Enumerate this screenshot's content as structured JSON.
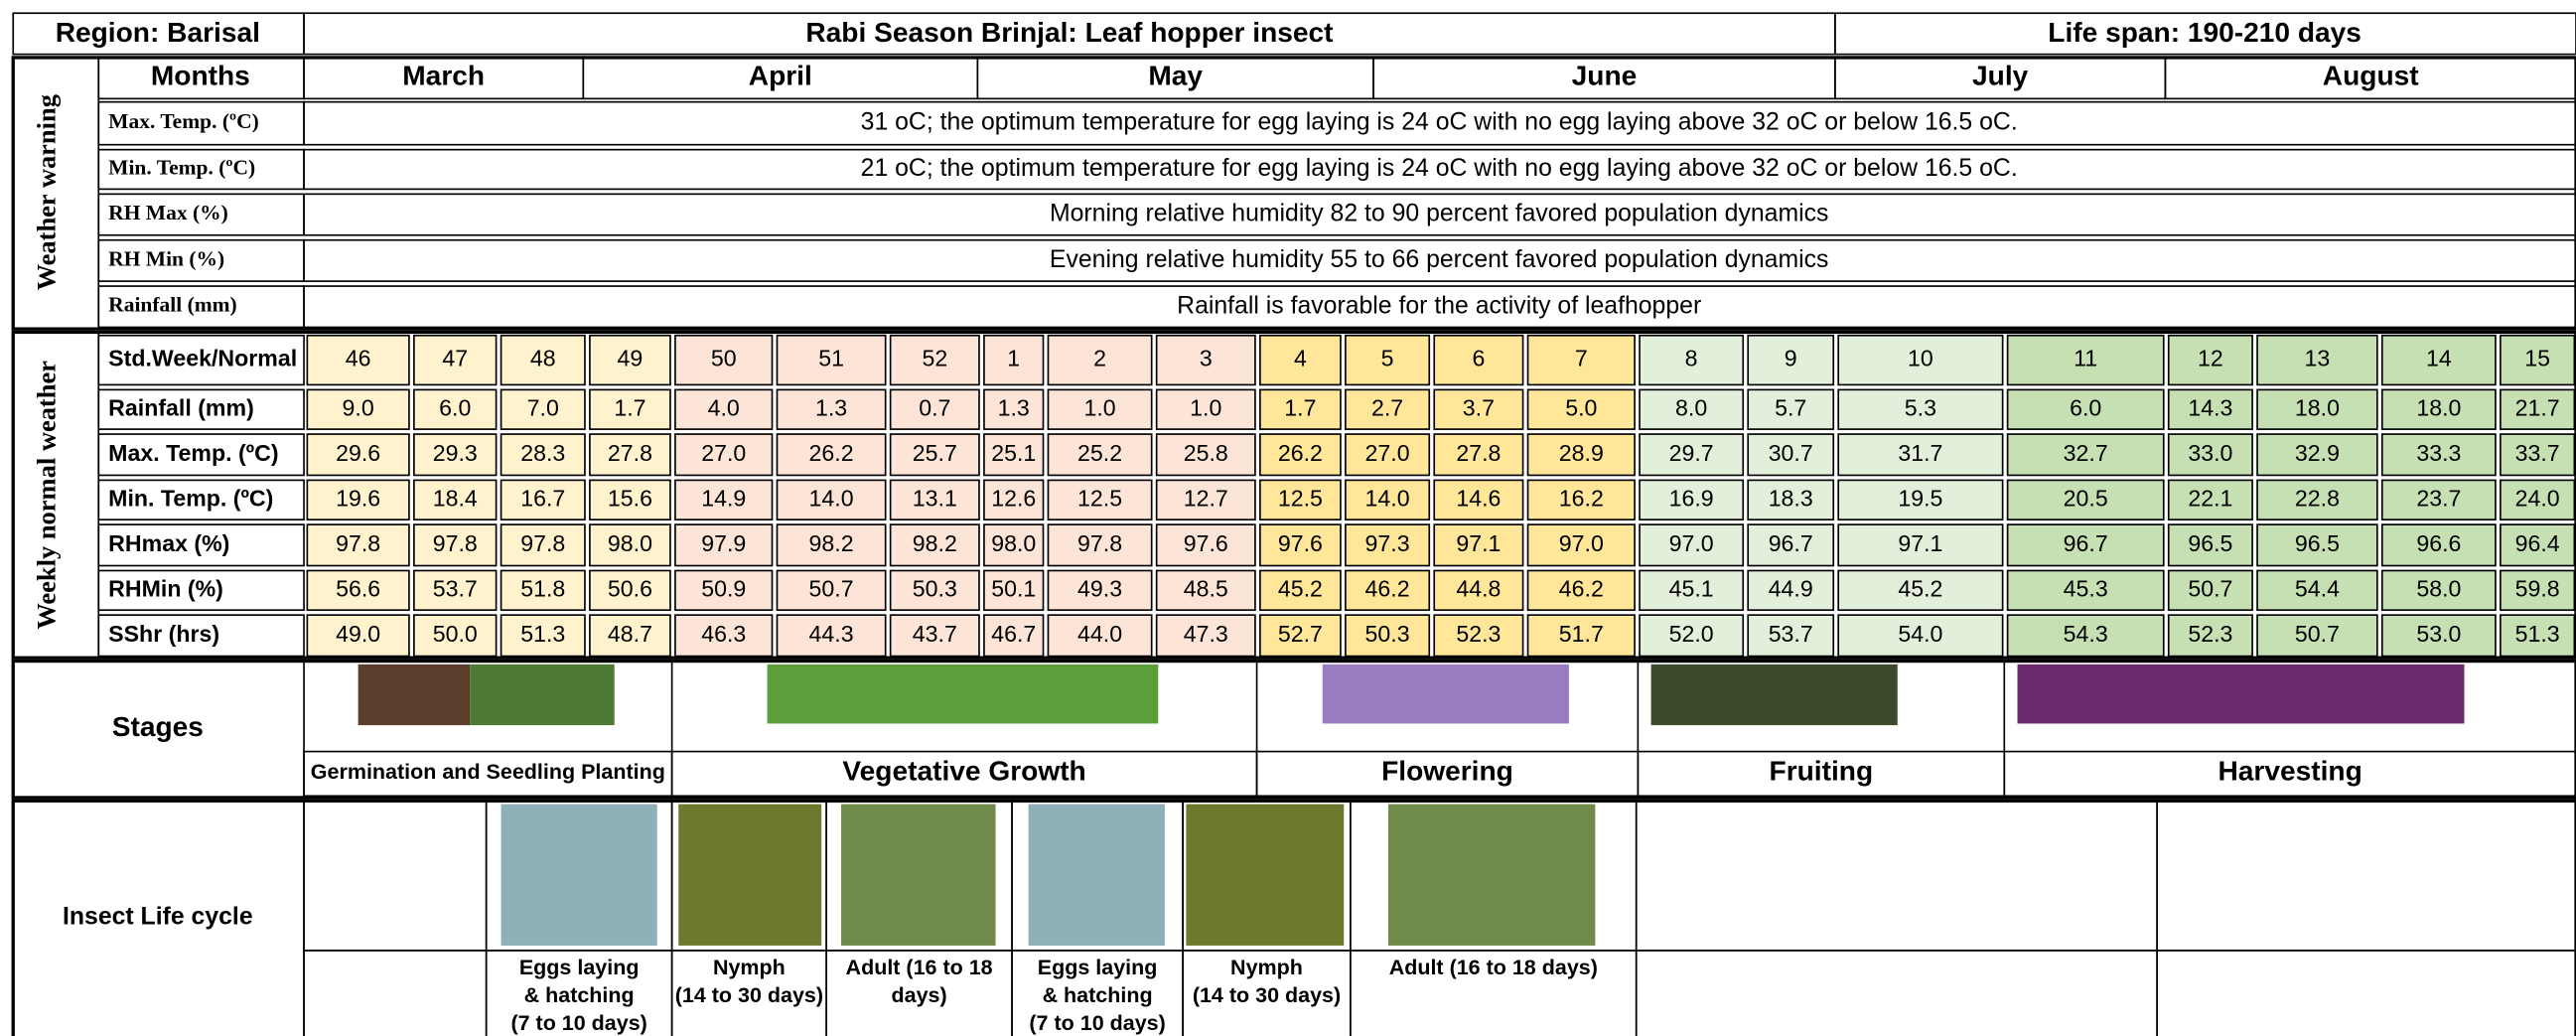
{
  "header": {
    "region": "Region: Barisal",
    "title": "Rabi Season Brinjal: Leaf hopper insect",
    "life_span": "Life span: 190-210 days"
  },
  "weather_warning": {
    "label": "Weather warning",
    "months_label": "Months",
    "months": [
      "March",
      "April",
      "May",
      "June",
      "July",
      "August"
    ],
    "rows": [
      {
        "label": "Max. Temp. (ºC)",
        "text": "31 oC; the optimum temperature for egg laying is 24 oC with no egg laying above 32 oC or below 16.5 oC."
      },
      {
        "label": "Min. Temp. (ºC)",
        "text": "21 oC; the optimum temperature for egg laying is 24 oC with no egg laying above 32 oC or below 16.5 oC."
      },
      {
        "label": "RH Max (%)",
        "text": "Morning relative humidity 82 to 90 percent favored population dynamics"
      },
      {
        "label": "RH Min (%)",
        "text": "Evening relative humidity 55 to 66 percent favored population dynamics"
      },
      {
        "label": "Rainfall (mm)",
        "text": "Rainfall is favorable for the activity of leafhopper"
      }
    ]
  },
  "weekly_normal": {
    "label": "Weekly normal weather",
    "column_colors": [
      "#fff2cc",
      "#fff2cc",
      "#fff2cc",
      "#fff2cc",
      "#fce4d6",
      "#fce4d6",
      "#fce4d6",
      "#fce4d6",
      "#fce4d6",
      "#fce4d6",
      "#ffe699",
      "#ffe699",
      "#ffe699",
      "#ffe699",
      "#e2efda",
      "#e2efda",
      "#e2efda",
      "#c6e0b4",
      "#c6e0b4",
      "#c6e0b4",
      "#c6e0b4",
      "#c6e0b4"
    ],
    "rows": [
      {
        "label": "Std.Week/Normal",
        "values": [
          "46",
          "47",
          "48",
          "49",
          "50",
          "51",
          "52",
          "1",
          "2",
          "3",
          "4",
          "5",
          "6",
          "7",
          "8",
          "9",
          "10",
          "11",
          "12",
          "13",
          "14",
          "15"
        ]
      },
      {
        "label": "Rainfall (mm)",
        "values": [
          "9.0",
          "6.0",
          "7.0",
          "1.7",
          "4.0",
          "1.3",
          "0.7",
          "1.3",
          "1.0",
          "1.0",
          "1.7",
          "2.7",
          "3.7",
          "5.0",
          "8.0",
          "5.7",
          "5.3",
          "6.0",
          "14.3",
          "18.0",
          "18.0",
          "21.7"
        ]
      },
      {
        "label": "Max. Temp. (ºC)",
        "values": [
          "29.6",
          "29.3",
          "28.3",
          "27.8",
          "27.0",
          "26.2",
          "25.7",
          "25.1",
          "25.2",
          "25.8",
          "26.2",
          "27.0",
          "27.8",
          "28.9",
          "29.7",
          "30.7",
          "31.7",
          "32.7",
          "33.0",
          "32.9",
          "33.3",
          "33.7"
        ]
      },
      {
        "label": "Min. Temp. (ºC)",
        "values": [
          "19.6",
          "18.4",
          "16.7",
          "15.6",
          "14.9",
          "14.0",
          "13.1",
          "12.6",
          "12.5",
          "12.7",
          "12.5",
          "14.0",
          "14.6",
          "16.2",
          "16.9",
          "18.3",
          "19.5",
          "20.5",
          "22.1",
          "22.8",
          "23.7",
          "24.0"
        ]
      },
      {
        "label": "RHmax (%)",
        "values": [
          "97.8",
          "97.8",
          "97.8",
          "98.0",
          "97.9",
          "98.2",
          "98.2",
          "98.0",
          "97.8",
          "97.6",
          "97.6",
          "97.3",
          "97.1",
          "97.0",
          "97.0",
          "96.7",
          "97.1",
          "96.7",
          "96.5",
          "96.5",
          "96.6",
          "96.4"
        ]
      },
      {
        "label": "RHMin (%)",
        "values": [
          "56.6",
          "53.7",
          "51.8",
          "50.6",
          "50.9",
          "50.7",
          "50.3",
          "50.1",
          "49.3",
          "48.5",
          "45.2",
          "46.2",
          "44.8",
          "46.2",
          "45.1",
          "44.9",
          "45.2",
          "45.3",
          "50.7",
          "54.4",
          "58.0",
          "59.8"
        ]
      },
      {
        "label": "SShr (hrs)",
        "values": [
          "49.0",
          "50.0",
          "51.3",
          "48.7",
          "46.3",
          "44.3",
          "43.7",
          "46.7",
          "44.0",
          "47.3",
          "52.7",
          "50.3",
          "52.3",
          "51.7",
          "52.0",
          "53.7",
          "54.0",
          "54.3",
          "52.3",
          "50.7",
          "53.0",
          "51.3"
        ]
      }
    ]
  },
  "stages": {
    "label": "Stages",
    "items": [
      "Germination and Seedling Planting",
      "Vegetative Growth",
      "Flowering",
      "Fruiting",
      "Harvesting"
    ]
  },
  "insect_life_cycle": {
    "label": "Insect Life cycle",
    "items": [
      {
        "lines": [
          "Eggs laying",
          "& hatching",
          "(7 to 10 days)"
        ]
      },
      {
        "lines": [
          "Nymph",
          "(14 to 30 days)"
        ]
      },
      {
        "lines": [
          "Adult (16 to 18",
          "days)"
        ]
      },
      {
        "lines": [
          "Eggs laying",
          "& hatching",
          "(7 to 10 days)"
        ]
      },
      {
        "lines": [
          "Nymph",
          "(14 to 30 days)"
        ]
      },
      {
        "lines": [
          "Adult (16 to 18 days)"
        ]
      }
    ]
  }
}
